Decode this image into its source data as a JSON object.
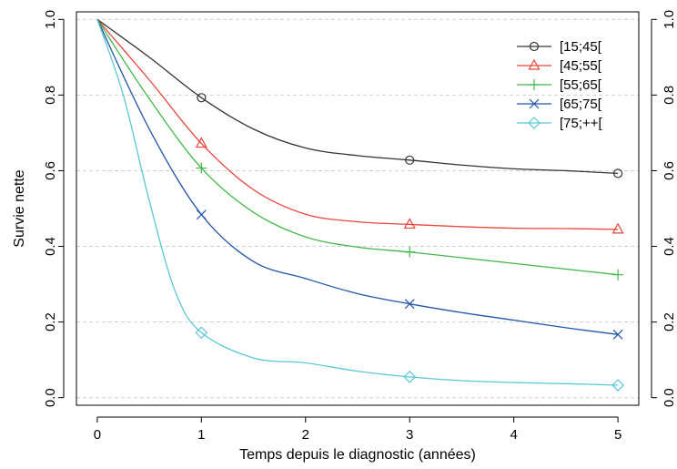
{
  "chart_data": {
    "type": "line",
    "title": "",
    "xlabel": "Temps depuis le diagnostic (années)",
    "ylabel": "Survie nette",
    "xlim": [
      -0.2,
      5.2
    ],
    "ylim": [
      -0.02,
      1.02
    ],
    "x_ticks": [
      0,
      1,
      2,
      3,
      4,
      5
    ],
    "y_ticks": [
      0.0,
      0.2,
      0.4,
      0.6,
      0.8,
      1.0
    ],
    "x_tick_labels": [
      "0",
      "1",
      "2",
      "3",
      "4",
      "5"
    ],
    "y_tick_labels": [
      "0.0",
      "0.2",
      "0.4",
      "0.6",
      "0.8",
      "1.0"
    ],
    "grid": "horizontal-dashed",
    "legend_position": "top-right",
    "secondary_y_axis": true,
    "series": [
      {
        "name": "[15;45[",
        "color": "#333333",
        "marker": "circle",
        "x": [
          0,
          0.5,
          1,
          1.5,
          2,
          2.5,
          3,
          3.5,
          4,
          4.5,
          5
        ],
        "y": [
          1.0,
          0.9,
          0.793,
          0.71,
          0.66,
          0.64,
          0.628,
          0.615,
          0.605,
          0.6,
          0.593
        ],
        "marker_x": [
          1,
          3,
          5
        ],
        "marker_y": [
          0.793,
          0.628,
          0.593
        ]
      },
      {
        "name": "[45;55[",
        "color": "#e8453c",
        "marker": "triangle",
        "x": [
          0,
          0.5,
          1,
          1.5,
          2,
          2.5,
          3,
          3.5,
          4,
          4.5,
          5
        ],
        "y": [
          1.0,
          0.84,
          0.672,
          0.55,
          0.485,
          0.465,
          0.458,
          0.452,
          0.448,
          0.447,
          0.445
        ],
        "marker_x": [
          1,
          3,
          5
        ],
        "marker_y": [
          0.672,
          0.458,
          0.445
        ]
      },
      {
        "name": "[55;65[",
        "color": "#43b84a",
        "marker": "plus",
        "x": [
          0,
          0.5,
          1,
          1.5,
          2,
          2.5,
          3,
          3.5,
          4,
          4.5,
          5
        ],
        "y": [
          1.0,
          0.79,
          0.607,
          0.49,
          0.425,
          0.398,
          0.385,
          0.37,
          0.355,
          0.34,
          0.325
        ],
        "marker_x": [
          1,
          3,
          5
        ],
        "marker_y": [
          0.607,
          0.385,
          0.325
        ]
      },
      {
        "name": "[65;75[",
        "color": "#2255a8",
        "marker": "cross",
        "x": [
          0,
          0.5,
          1,
          1.5,
          2,
          2.5,
          3,
          3.5,
          4,
          4.5,
          5
        ],
        "y": [
          1.0,
          0.71,
          0.484,
          0.36,
          0.315,
          0.275,
          0.248,
          0.225,
          0.205,
          0.185,
          0.167
        ],
        "marker_x": [
          1,
          3,
          5
        ],
        "marker_y": [
          0.484,
          0.248,
          0.167
        ]
      },
      {
        "name": "[75;++[",
        "color": "#5bc8d4",
        "marker": "diamond",
        "x": [
          0,
          0.25,
          0.5,
          0.75,
          1,
          1.5,
          2,
          2.5,
          3,
          3.5,
          4,
          4.5,
          5
        ],
        "y": [
          1.0,
          0.8,
          0.52,
          0.28,
          0.172,
          0.105,
          0.092,
          0.07,
          0.055,
          0.045,
          0.04,
          0.037,
          0.033
        ],
        "marker_x": [
          1,
          3,
          5
        ],
        "marker_y": [
          0.172,
          0.055,
          0.033
        ]
      }
    ]
  }
}
